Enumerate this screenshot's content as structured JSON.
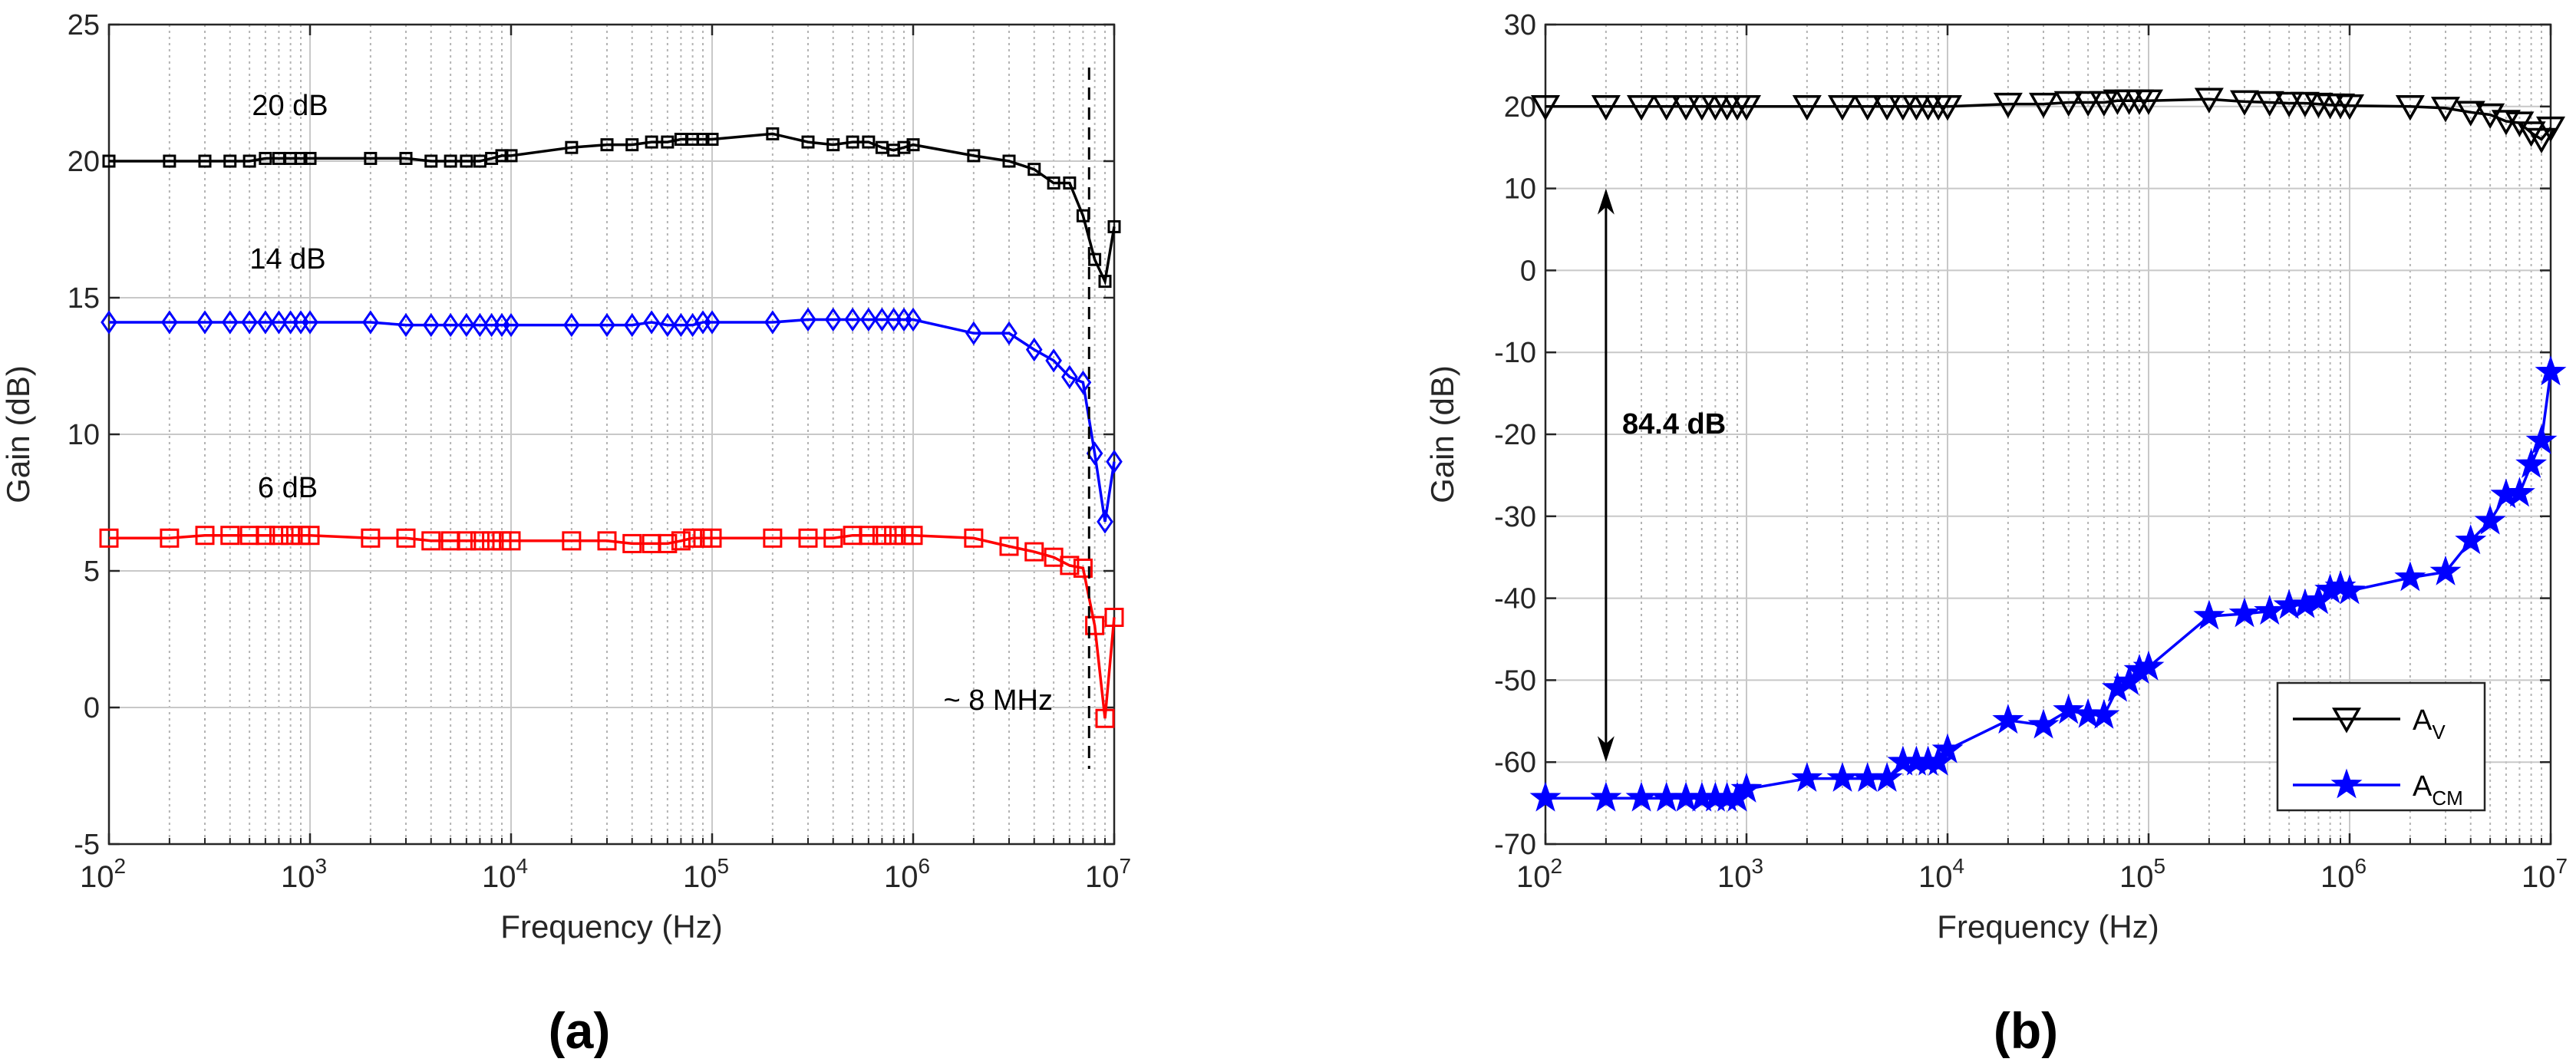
{
  "colors": {
    "black": "#000000",
    "blue": "#0000ff",
    "red": "#ff0000",
    "grid": "#c8c8c8"
  },
  "chart_data": [
    {
      "id": "a",
      "type": "line",
      "panel_label": "(a)",
      "xscale": "log",
      "xlim": [
        100,
        10000000
      ],
      "ylim": [
        -5,
        25
      ],
      "yticks": [
        -5,
        0,
        5,
        10,
        15,
        20,
        25
      ],
      "xticks": [
        2,
        3,
        4,
        5,
        6,
        7
      ],
      "tick_base": "10",
      "xlabel": "Frequency (Hz)",
      "ylabel": "Gain (dB)",
      "grid": true,
      "series": [
        {
          "name": "20 dB",
          "color": "#000000",
          "marker": "square_small",
          "x": [
            100,
            200,
            300,
            400,
            500,
            600,
            700,
            800,
            900,
            1000,
            2000,
            3000,
            4000,
            5000,
            6000,
            7000,
            8000,
            9000,
            10000,
            20000,
            30000,
            40000,
            50000,
            60000,
            70000,
            80000,
            90000,
            100000,
            200000,
            300000,
            400000,
            500000,
            600000,
            700000,
            800000,
            900000,
            1000000,
            2000000,
            3000000,
            4000000,
            5000000,
            6000000,
            7000000,
            8000000,
            9000000,
            10000000
          ],
          "y": [
            20,
            20,
            20,
            20,
            20,
            20.1,
            20.1,
            20.1,
            20.1,
            20.1,
            20.1,
            20.1,
            20,
            20,
            20,
            20,
            20.1,
            20.2,
            20.2,
            20.5,
            20.6,
            20.6,
            20.7,
            20.7,
            20.8,
            20.8,
            20.8,
            20.8,
            21,
            20.7,
            20.6,
            20.7,
            20.7,
            20.5,
            20.4,
            20.5,
            20.6,
            20.2,
            20,
            19.7,
            19.2,
            19.2,
            18,
            16.4,
            15.6,
            17.6
          ]
        },
        {
          "name": "14 dB",
          "color": "#0000ff",
          "marker": "diamond",
          "x": [
            100,
            200,
            300,
            400,
            500,
            600,
            700,
            800,
            900,
            1000,
            2000,
            3000,
            4000,
            5000,
            6000,
            7000,
            8000,
            9000,
            10000,
            20000,
            30000,
            40000,
            50000,
            60000,
            70000,
            80000,
            90000,
            100000,
            200000,
            300000,
            400000,
            500000,
            600000,
            700000,
            800000,
            900000,
            1000000,
            2000000,
            3000000,
            4000000,
            5000000,
            6000000,
            7000000,
            8000000,
            9000000,
            10000000
          ],
          "y": [
            14.1,
            14.1,
            14.1,
            14.1,
            14.1,
            14.1,
            14.1,
            14.1,
            14.1,
            14.1,
            14.1,
            14,
            14,
            14,
            14,
            14,
            14,
            14,
            14,
            14,
            14,
            14,
            14.1,
            14,
            14,
            14,
            14.1,
            14.1,
            14.1,
            14.2,
            14.2,
            14.2,
            14.2,
            14.2,
            14.2,
            14.2,
            14.2,
            13.7,
            13.7,
            13.1,
            12.7,
            12.1,
            11.9,
            9.3,
            6.8,
            9
          ]
        },
        {
          "name": "6 dB",
          "color": "#ff0000",
          "marker": "square_large",
          "x": [
            100,
            200,
            300,
            400,
            500,
            600,
            700,
            800,
            900,
            1000,
            2000,
            3000,
            4000,
            5000,
            6000,
            7000,
            8000,
            9000,
            10000,
            20000,
            30000,
            40000,
            50000,
            60000,
            70000,
            80000,
            90000,
            100000,
            200000,
            300000,
            400000,
            500000,
            600000,
            700000,
            800000,
            900000,
            1000000,
            2000000,
            3000000,
            4000000,
            5000000,
            6000000,
            7000000,
            8000000,
            9000000,
            10000000
          ],
          "y": [
            6.2,
            6.2,
            6.3,
            6.3,
            6.3,
            6.3,
            6.3,
            6.3,
            6.3,
            6.3,
            6.2,
            6.2,
            6.1,
            6.1,
            6.1,
            6.1,
            6.1,
            6.1,
            6.1,
            6.1,
            6.1,
            6,
            6,
            6,
            6.1,
            6.2,
            6.2,
            6.2,
            6.2,
            6.2,
            6.2,
            6.3,
            6.3,
            6.3,
            6.3,
            6.3,
            6.3,
            6.2,
            5.9,
            5.7,
            5.5,
            5.2,
            5.1,
            3,
            -0.4,
            3.3
          ]
        }
      ],
      "annotations": {
        "label_20": "20 dB",
        "label_14": "14 dB",
        "label_6": "6 dB",
        "cutoff_label": "~ 8 MHz",
        "cutoff_freq": 7500000
      }
    },
    {
      "id": "b",
      "type": "line",
      "panel_label": "(b)",
      "xscale": "log",
      "xlim": [
        100,
        10000000
      ],
      "ylim": [
        -70,
        30
      ],
      "yticks": [
        -70,
        -60,
        -50,
        -40,
        -30,
        -20,
        -10,
        0,
        10,
        20,
        30
      ],
      "xticks": [
        2,
        3,
        4,
        5,
        6,
        7
      ],
      "tick_base": "10",
      "xlabel": "Frequency (Hz)",
      "ylabel": "Gain (dB)",
      "grid": true,
      "legend": {
        "position": "bottom-right",
        "entries": [
          {
            "base": "A",
            "sub": "V"
          },
          {
            "base": "A",
            "sub": "CM"
          }
        ]
      },
      "series": [
        {
          "name": "A_V",
          "color": "#000000",
          "marker": "triangle_down",
          "x": [
            100,
            200,
            300,
            400,
            500,
            600,
            700,
            800,
            900,
            1000,
            2000,
            3000,
            4000,
            5000,
            6000,
            7000,
            8000,
            9000,
            10000,
            20000,
            30000,
            40000,
            50000,
            60000,
            70000,
            80000,
            90000,
            100000,
            200000,
            300000,
            400000,
            500000,
            600000,
            700000,
            800000,
            900000,
            1000000,
            2000000,
            3000000,
            4000000,
            5000000,
            6000000,
            7000000,
            8000000,
            9000000,
            10000000
          ],
          "y": [
            20,
            20,
            20,
            20,
            20,
            20,
            20,
            20,
            20,
            20,
            20,
            20,
            20,
            20,
            20,
            20,
            20,
            20,
            20,
            20.3,
            20.3,
            20.5,
            20.5,
            20.5,
            20.7,
            20.7,
            20.7,
            20.7,
            20.9,
            20.6,
            20.5,
            20.4,
            20.4,
            20.3,
            20.2,
            20.2,
            20.1,
            20,
            19.8,
            19.3,
            19,
            18.2,
            18,
            16.8,
            16,
            17.4
          ]
        },
        {
          "name": "A_CM",
          "color": "#0000ff",
          "marker": "star",
          "x": [
            100,
            200,
            300,
            400,
            500,
            600,
            700,
            800,
            900,
            1000,
            2000,
            3000,
            4000,
            5000,
            6000,
            7000,
            8000,
            9000,
            10000,
            20000,
            30000,
            40000,
            50000,
            60000,
            70000,
            80000,
            90000,
            100000,
            200000,
            300000,
            400000,
            500000,
            600000,
            700000,
            800000,
            900000,
            1000000,
            2000000,
            3000000,
            4000000,
            5000000,
            6000000,
            7000000,
            8000000,
            9000000,
            10000000
          ],
          "y": [
            -64.4,
            -64.4,
            -64.4,
            -64.4,
            -64.4,
            -64.4,
            -64.4,
            -64.4,
            -64.4,
            -63.3,
            -62,
            -62,
            -62,
            -62,
            -60,
            -60,
            -60,
            -60,
            -58.5,
            -54.9,
            -55.5,
            -53.7,
            -54.2,
            -54.3,
            -51,
            -50.2,
            -48.8,
            -48.4,
            -42.2,
            -41.9,
            -41.6,
            -40.9,
            -40.8,
            -40.3,
            -39,
            -38.6,
            -39.1,
            -37.5,
            -36.8,
            -33,
            -30.6,
            -27.4,
            -27.2,
            -23.7,
            -20.8,
            -12.4
          ]
        }
      ],
      "annotations": {
        "span_label": "84.4 dB",
        "arrow_x": 200,
        "arrow_top": 10,
        "arrow_bottom": -60
      }
    }
  ]
}
